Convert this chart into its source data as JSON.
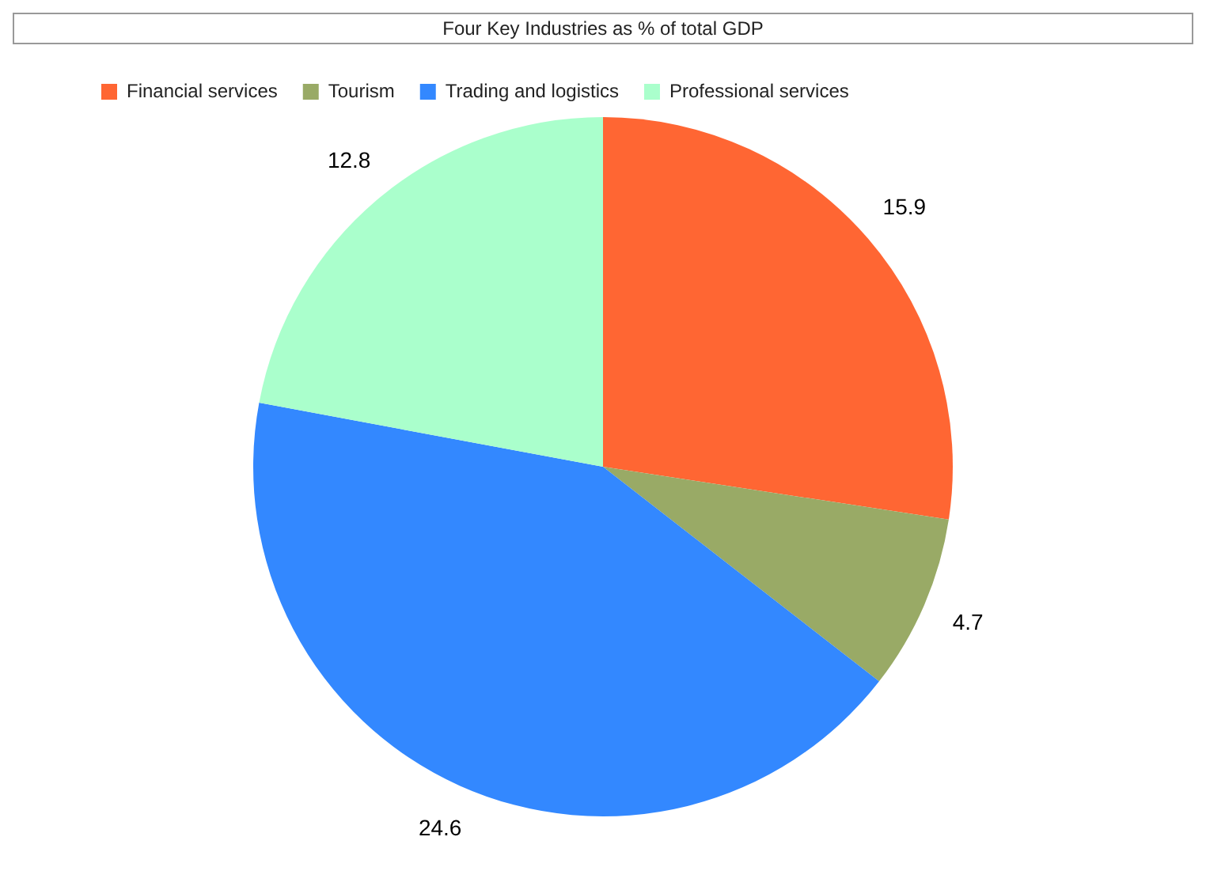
{
  "chart_data": {
    "type": "pie",
    "title": "Four Key Industries as % of total GDP",
    "categories": [
      "Financial services",
      "Tourism",
      "Trading and logistics",
      "Professional services"
    ],
    "values": [
      15.9,
      4.7,
      24.6,
      12.8
    ],
    "colors": [
      "#ff6633",
      "#99aa66",
      "#3388ff",
      "#aaffcc"
    ],
    "data_labels": true,
    "legend": "top left"
  }
}
